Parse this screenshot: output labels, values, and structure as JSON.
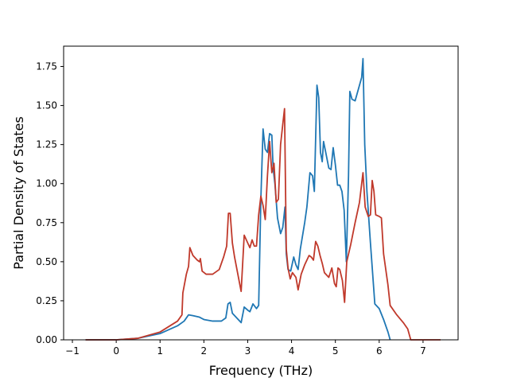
{
  "chart_data": {
    "type": "line",
    "title": "",
    "xlabel": "Frequency (THz)",
    "ylabel": "Partial Density of States",
    "xlim": [
      -1.2,
      7.8
    ],
    "ylim": [
      0,
      1.88
    ],
    "x_ticks": [
      -1,
      0,
      1,
      2,
      3,
      4,
      5,
      6,
      7
    ],
    "x_tick_labels": [
      "−1",
      "0",
      "1",
      "2",
      "3",
      "4",
      "5",
      "6",
      "7"
    ],
    "y_ticks": [
      0,
      0.25,
      0.5,
      0.75,
      1.0,
      1.25,
      1.5,
      1.75
    ],
    "y_tick_labels": [
      "0.00",
      "0.25",
      "0.50",
      "0.75",
      "1.00",
      "1.25",
      "1.50",
      "1.75"
    ],
    "grid": false,
    "legend": "none",
    "series": [
      {
        "color": "#1f77b4",
        "points": [
          [
            -0.7,
            0.0
          ],
          [
            0.0,
            0.0
          ],
          [
            0.5,
            0.01
          ],
          [
            1.0,
            0.04
          ],
          [
            1.4,
            0.09
          ],
          [
            1.55,
            0.12
          ],
          [
            1.65,
            0.16
          ],
          [
            1.75,
            0.155
          ],
          [
            1.9,
            0.145
          ],
          [
            2.0,
            0.13
          ],
          [
            2.2,
            0.12
          ],
          [
            2.4,
            0.12
          ],
          [
            2.5,
            0.14
          ],
          [
            2.55,
            0.23
          ],
          [
            2.6,
            0.24
          ],
          [
            2.65,
            0.17
          ],
          [
            2.75,
            0.14
          ],
          [
            2.85,
            0.11
          ],
          [
            2.92,
            0.21
          ],
          [
            3.0,
            0.19
          ],
          [
            3.05,
            0.18
          ],
          [
            3.12,
            0.23
          ],
          [
            3.2,
            0.2
          ],
          [
            3.25,
            0.22
          ],
          [
            3.3,
            0.9
          ],
          [
            3.35,
            1.35
          ],
          [
            3.4,
            1.22
          ],
          [
            3.45,
            1.2
          ],
          [
            3.5,
            1.32
          ],
          [
            3.55,
            1.31
          ],
          [
            3.58,
            1.1
          ],
          [
            3.62,
            1.0
          ],
          [
            3.68,
            0.78
          ],
          [
            3.75,
            0.68
          ],
          [
            3.8,
            0.72
          ],
          [
            3.85,
            0.85
          ],
          [
            3.88,
            0.55
          ],
          [
            3.92,
            0.45
          ],
          [
            3.98,
            0.44
          ],
          [
            4.05,
            0.53
          ],
          [
            4.1,
            0.48
          ],
          [
            4.15,
            0.45
          ],
          [
            4.2,
            0.58
          ],
          [
            4.3,
            0.75
          ],
          [
            4.35,
            0.85
          ],
          [
            4.42,
            1.07
          ],
          [
            4.48,
            1.05
          ],
          [
            4.52,
            0.95
          ],
          [
            4.58,
            1.63
          ],
          [
            4.62,
            1.55
          ],
          [
            4.66,
            1.2
          ],
          [
            4.7,
            1.14
          ],
          [
            4.73,
            1.27
          ],
          [
            4.78,
            1.2
          ],
          [
            4.85,
            1.1
          ],
          [
            4.9,
            1.09
          ],
          [
            4.95,
            1.23
          ],
          [
            5.0,
            1.12
          ],
          [
            5.05,
            0.99
          ],
          [
            5.1,
            0.99
          ],
          [
            5.15,
            0.95
          ],
          [
            5.2,
            0.83
          ],
          [
            5.25,
            0.5
          ],
          [
            5.3,
            1.05
          ],
          [
            5.33,
            1.59
          ],
          [
            5.38,
            1.54
          ],
          [
            5.45,
            1.53
          ],
          [
            5.55,
            1.63
          ],
          [
            5.6,
            1.68
          ],
          [
            5.63,
            1.8
          ],
          [
            5.67,
            1.25
          ],
          [
            5.72,
            0.95
          ],
          [
            5.8,
            0.62
          ],
          [
            5.9,
            0.23
          ],
          [
            6.0,
            0.2
          ],
          [
            6.1,
            0.13
          ],
          [
            6.2,
            0.05
          ],
          [
            6.25,
            0.0
          ]
        ]
      },
      {
        "color": "#c0392b",
        "points": [
          [
            -0.7,
            0.0
          ],
          [
            0.0,
            0.0
          ],
          [
            0.5,
            0.01
          ],
          [
            1.0,
            0.05
          ],
          [
            1.4,
            0.12
          ],
          [
            1.5,
            0.16
          ],
          [
            1.52,
            0.3
          ],
          [
            1.6,
            0.42
          ],
          [
            1.65,
            0.47
          ],
          [
            1.68,
            0.59
          ],
          [
            1.75,
            0.54
          ],
          [
            1.85,
            0.51
          ],
          [
            1.9,
            0.5
          ],
          [
            1.92,
            0.52
          ],
          [
            1.96,
            0.44
          ],
          [
            2.05,
            0.42
          ],
          [
            2.2,
            0.42
          ],
          [
            2.35,
            0.45
          ],
          [
            2.45,
            0.53
          ],
          [
            2.52,
            0.6
          ],
          [
            2.56,
            0.81
          ],
          [
            2.6,
            0.81
          ],
          [
            2.65,
            0.62
          ],
          [
            2.7,
            0.53
          ],
          [
            2.85,
            0.31
          ],
          [
            2.92,
            0.67
          ],
          [
            3.0,
            0.62
          ],
          [
            3.05,
            0.59
          ],
          [
            3.1,
            0.64
          ],
          [
            3.15,
            0.6
          ],
          [
            3.2,
            0.6
          ],
          [
            3.25,
            0.8
          ],
          [
            3.3,
            0.92
          ],
          [
            3.35,
            0.86
          ],
          [
            3.4,
            0.77
          ],
          [
            3.45,
            1.05
          ],
          [
            3.5,
            1.27
          ],
          [
            3.55,
            1.07
          ],
          [
            3.6,
            1.13
          ],
          [
            3.65,
            0.88
          ],
          [
            3.7,
            0.9
          ],
          [
            3.75,
            1.25
          ],
          [
            3.8,
            1.38
          ],
          [
            3.84,
            1.48
          ],
          [
            3.88,
            0.58
          ],
          [
            3.92,
            0.46
          ],
          [
            3.97,
            0.39
          ],
          [
            4.02,
            0.43
          ],
          [
            4.1,
            0.4
          ],
          [
            4.15,
            0.32
          ],
          [
            4.22,
            0.42
          ],
          [
            4.3,
            0.48
          ],
          [
            4.4,
            0.54
          ],
          [
            4.45,
            0.53
          ],
          [
            4.5,
            0.51
          ],
          [
            4.55,
            0.63
          ],
          [
            4.6,
            0.6
          ],
          [
            4.65,
            0.54
          ],
          [
            4.7,
            0.49
          ],
          [
            4.75,
            0.43
          ],
          [
            4.85,
            0.4
          ],
          [
            4.92,
            0.46
          ],
          [
            4.98,
            0.36
          ],
          [
            5.02,
            0.34
          ],
          [
            5.06,
            0.46
          ],
          [
            5.1,
            0.45
          ],
          [
            5.16,
            0.38
          ],
          [
            5.21,
            0.24
          ],
          [
            5.26,
            0.5
          ],
          [
            5.35,
            0.61
          ],
          [
            5.45,
            0.75
          ],
          [
            5.55,
            0.88
          ],
          [
            5.6,
            1.0
          ],
          [
            5.63,
            1.07
          ],
          [
            5.68,
            0.85
          ],
          [
            5.75,
            0.79
          ],
          [
            5.8,
            0.8
          ],
          [
            5.84,
            1.02
          ],
          [
            5.88,
            0.95
          ],
          [
            5.92,
            0.8
          ],
          [
            6.0,
            0.79
          ],
          [
            6.05,
            0.78
          ],
          [
            6.1,
            0.55
          ],
          [
            6.2,
            0.35
          ],
          [
            6.25,
            0.22
          ],
          [
            6.4,
            0.16
          ],
          [
            6.55,
            0.11
          ],
          [
            6.65,
            0.07
          ],
          [
            6.72,
            0.0
          ],
          [
            7.4,
            0.0
          ]
        ]
      }
    ]
  }
}
